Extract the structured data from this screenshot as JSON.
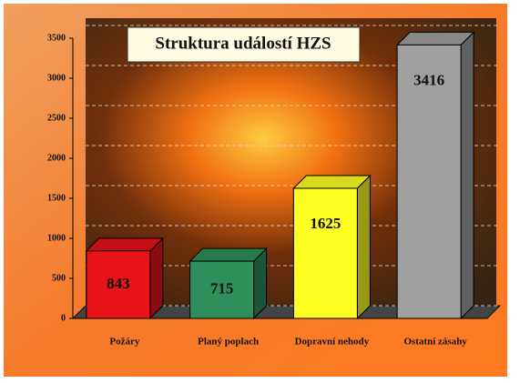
{
  "chart_data": {
    "type": "bar3d",
    "title": "Struktura událostí HZS",
    "categories": [
      "Požáry",
      "Planý poplach",
      "Dopravní nehody",
      "Ostatní zásahy"
    ],
    "values": [
      843,
      715,
      1625,
      3416
    ],
    "colors": [
      "#e8141a",
      "#2f8f5a",
      "#ffff22",
      "#a0a0a0"
    ],
    "ylim": [
      0,
      3500
    ],
    "yticks": [
      0,
      500,
      1000,
      1500,
      2000,
      2500,
      3000,
      3500
    ],
    "grid": true
  }
}
